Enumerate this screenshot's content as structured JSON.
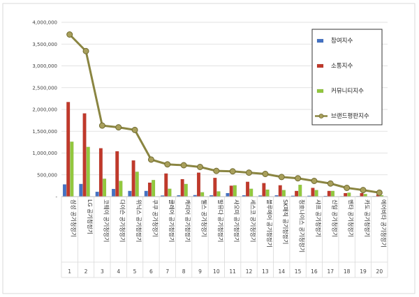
{
  "chart_data": {
    "type": "bar",
    "title": "",
    "xlabel": "",
    "ylabel": "",
    "ylim": [
      0,
      4000000
    ],
    "yticks": [
      0,
      500000,
      1000000,
      1500000,
      2000000,
      2500000,
      3000000,
      3500000,
      4000000
    ],
    "ytick_labels": [
      "-",
      "500,000",
      "1,000,000",
      "1,500,000",
      "2,000,000",
      "2,500,000",
      "3,000,000",
      "3,500,000",
      "4,000,000"
    ],
    "grid": true,
    "legend_position": "right",
    "rank_labels": [
      "1",
      "2",
      "3",
      "4",
      "5",
      "6",
      "7",
      "8",
      "9",
      "10",
      "11",
      "12",
      "13",
      "14",
      "15",
      "16",
      "17",
      "18",
      "19",
      "20"
    ],
    "categories": [
      "삼성 공기청정기",
      "LG 공기청정기",
      "코웨이 공기청정기",
      "다이슨 공기청정기",
      "위닉스 공기청정기",
      "쿠쿠 공기청정기",
      "클레어 공기청정기",
      "캐리어 공기청정기",
      "웰스 공기청정기",
      "발뮤다 공기청정기",
      "샤오미 공기청정기",
      "세스코 공기청정기",
      "블루에어 공기청정기",
      "SK매직 공기청정기",
      "청호나이스 공기청정기",
      "샤프 공기청정기",
      "신일 공기청정기",
      "벤타 공기청정기",
      "카도 공기청정기",
      "에어비타 공기청정기"
    ],
    "series": [
      {
        "name": "참여지수",
        "type": "bar",
        "color": "#4472c4",
        "values": [
          280000,
          290000,
          110000,
          175000,
          130000,
          130000,
          25000,
          30000,
          35000,
          30000,
          80000,
          30000,
          25000,
          30000,
          20000,
          20000,
          15000,
          10000,
          10000,
          10000
        ]
      },
      {
        "name": "소통지수",
        "type": "bar",
        "color": "#c0392b",
        "values": [
          2170000,
          1910000,
          1110000,
          1040000,
          830000,
          320000,
          530000,
          400000,
          550000,
          430000,
          250000,
          340000,
          310000,
          260000,
          130000,
          200000,
          130000,
          80000,
          80000,
          50000
        ]
      },
      {
        "name": "커뮤니티지수",
        "type": "bar",
        "color": "#92c83e",
        "values": [
          1260000,
          1140000,
          410000,
          360000,
          570000,
          380000,
          180000,
          290000,
          100000,
          120000,
          260000,
          180000,
          160000,
          150000,
          270000,
          150000,
          130000,
          90000,
          60000,
          30000
        ]
      },
      {
        "name": "브랜드평판지수",
        "type": "line",
        "color": "#8a8541",
        "values": [
          3720000,
          3340000,
          1630000,
          1590000,
          1530000,
          850000,
          740000,
          720000,
          680000,
          590000,
          580000,
          550000,
          520000,
          450000,
          420000,
          360000,
          300000,
          200000,
          150000,
          90000
        ]
      }
    ]
  }
}
